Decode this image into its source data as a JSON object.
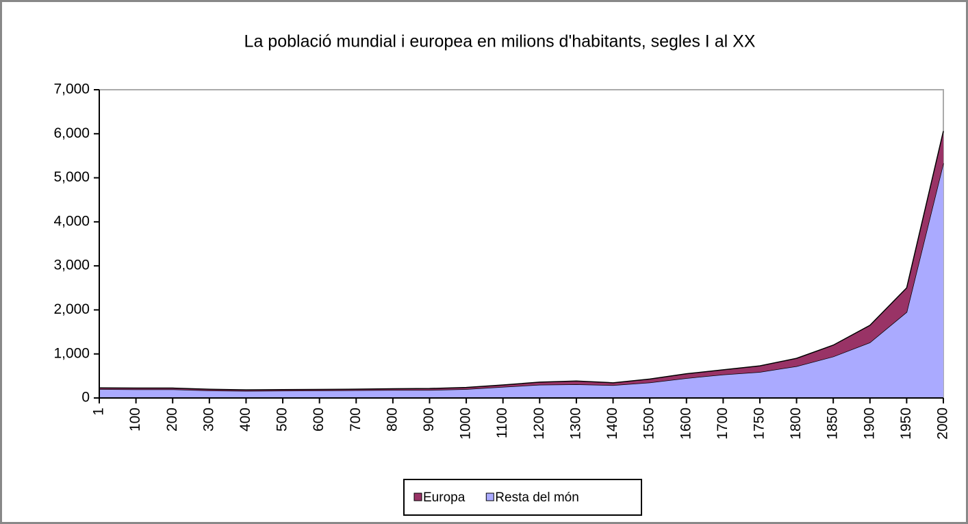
{
  "chart_data": {
    "type": "stacked_area",
    "title": "La població mundial i europea en milions d'habitants, segles I al XX",
    "categories": [
      "1",
      "100",
      "200",
      "300",
      "400",
      "500",
      "600",
      "700",
      "800",
      "900",
      "1000",
      "1100",
      "1200",
      "1300",
      "1400",
      "1500",
      "1600",
      "1700",
      "1750",
      "1800",
      "1850",
      "1900",
      "1950",
      "2000"
    ],
    "series": [
      {
        "name": "Resta del món",
        "color": "#aaaaff",
        "values": [
          200,
          195,
          195,
          170,
          160,
          165,
          170,
          175,
          180,
          180,
          200,
          250,
          300,
          310,
          290,
          350,
          450,
          530,
          590,
          720,
          940,
          1260,
          1950,
          5330
        ]
      },
      {
        "name": "Europa",
        "color": "#993366",
        "values": [
          30,
          30,
          30,
          28,
          25,
          25,
          25,
          25,
          30,
          35,
          40,
          45,
          60,
          75,
          55,
          80,
          100,
          110,
          140,
          180,
          260,
          390,
          550,
          730
        ]
      }
    ],
    "legend_order": [
      "Europa",
      "Resta del món"
    ],
    "ylim": [
      0,
      7000
    ],
    "yticks": [
      0,
      {
        "value": 1000,
        "label": "1,000"
      },
      {
        "value": 2000,
        "label": "2,000"
      },
      {
        "value": 3000,
        "label": "3,000"
      },
      {
        "value": 4000,
        "label": "4,000"
      },
      {
        "value": 5000,
        "label": "5,000"
      },
      {
        "value": 6000,
        "label": "6,000"
      },
      {
        "value": 7000,
        "label": "7,000"
      }
    ],
    "legend": "bottom"
  }
}
